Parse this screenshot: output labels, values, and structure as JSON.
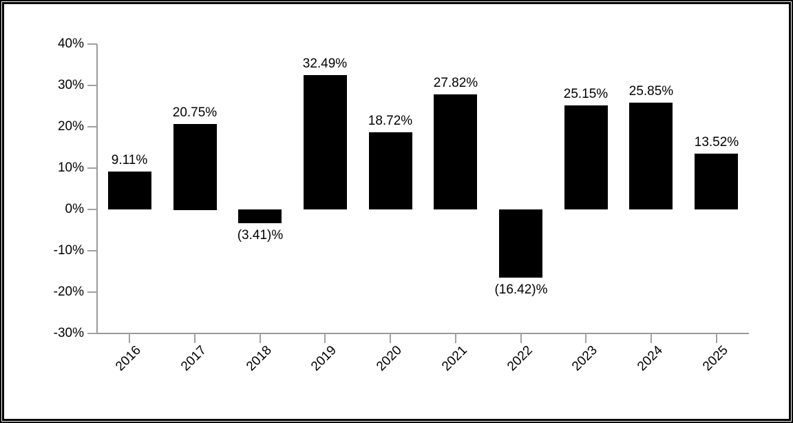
{
  "chart_data": {
    "type": "bar",
    "title": "",
    "xlabel": "",
    "ylabel": "",
    "categories": [
      "2016",
      "2017",
      "2018",
      "2019",
      "2020",
      "2021",
      "2022",
      "2023",
      "2024",
      "2025"
    ],
    "values": [
      9.11,
      20.75,
      -3.41,
      32.49,
      18.72,
      27.82,
      -16.42,
      25.15,
      25.85,
      13.52
    ],
    "bar_labels": [
      "9.11%",
      "20.75%",
      "(3.41)%",
      "32.49%",
      "18.72%",
      "27.82%",
      "(16.42)%",
      "25.15%",
      "25.85%",
      "13.52%"
    ],
    "ylim": [
      -30,
      40
    ],
    "y_ticks": [
      {
        "value": 40,
        "label": "40%"
      },
      {
        "value": 30,
        "label": "30%"
      },
      {
        "value": 20,
        "label": "20%"
      },
      {
        "value": 10,
        "label": "10%"
      },
      {
        "value": 0,
        "label": "0%"
      },
      {
        "value": -10,
        "label": "-10%"
      },
      {
        "value": -20,
        "label": "-20%"
      },
      {
        "value": -30,
        "label": "-30%"
      }
    ],
    "grid": false,
    "legend": "none",
    "colors": {
      "bar": "#000000",
      "axis": "#999999",
      "text": "#000000",
      "background": "#ffffff",
      "frame": "#000000"
    }
  }
}
